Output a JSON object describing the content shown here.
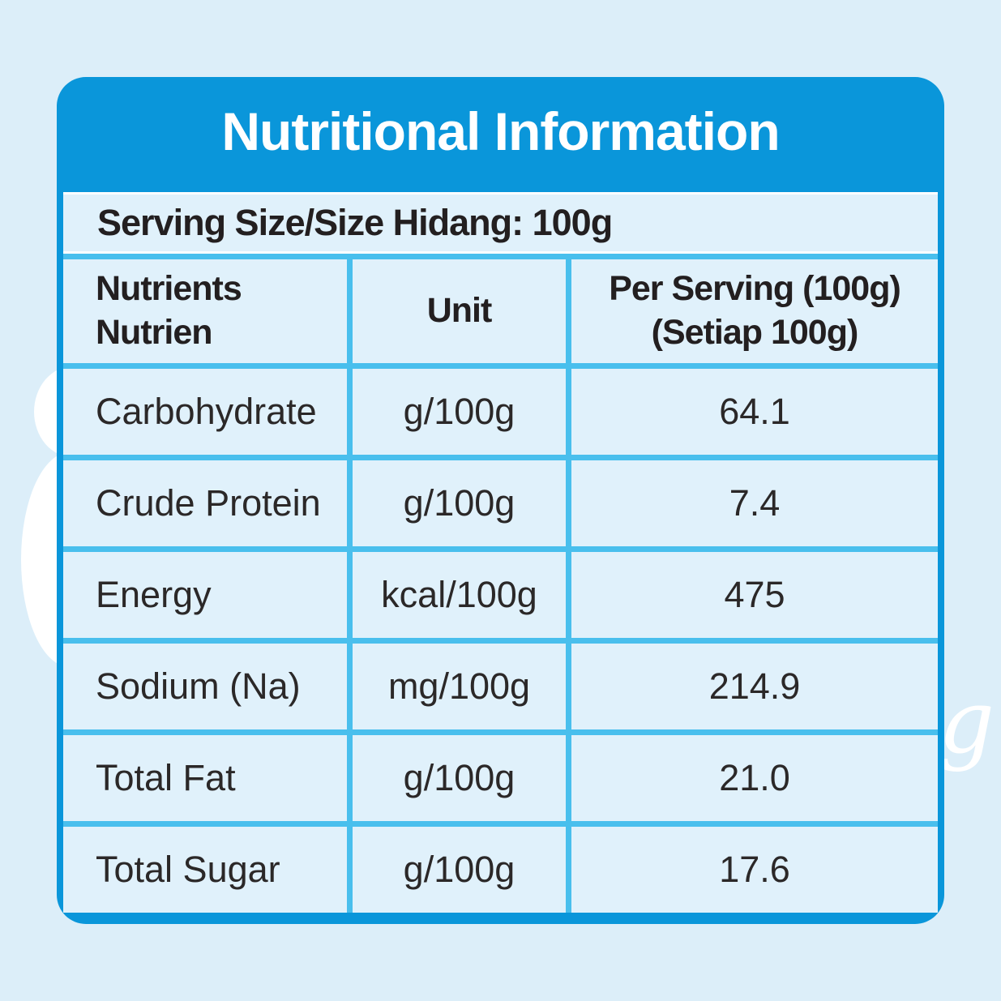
{
  "colors": {
    "page_bg": "#dceef9",
    "card_blue": "#0a96da",
    "grid_cyan": "#49bfed",
    "cell_bg": "#e0f1fb",
    "title_text": "#ffffff",
    "body_text": "#231f20"
  },
  "card": {
    "title": "Nutritional Information",
    "serving_row": {
      "text": "Serving Size/Size Hidang: 100g"
    },
    "table": {
      "columns": [
        {
          "line1": "Nutrients",
          "line2": "Nutrien"
        },
        {
          "line1": "Unit",
          "line2": ""
        },
        {
          "line1": "Per Serving (100g)",
          "line2": "(Setiap 100g)"
        }
      ],
      "rows": [
        {
          "nutrient": "Carbohydrate",
          "unit": "g/100g",
          "value": "64.1"
        },
        {
          "nutrient": "Crude Protein",
          "unit": "g/100g",
          "value": "7.4"
        },
        {
          "nutrient": "Energy",
          "unit": "kcal/100g",
          "value": "475"
        },
        {
          "nutrient": "Sodium (Na)",
          "unit": "mg/100g",
          "value": "214.9"
        },
        {
          "nutrient": "Total Fat",
          "unit": "g/100g",
          "value": "21.0"
        },
        {
          "nutrient": "Total Sugar",
          "unit": "g/100g",
          "value": "17.6"
        }
      ]
    }
  },
  "decorations": {
    "script_letter": "g"
  }
}
